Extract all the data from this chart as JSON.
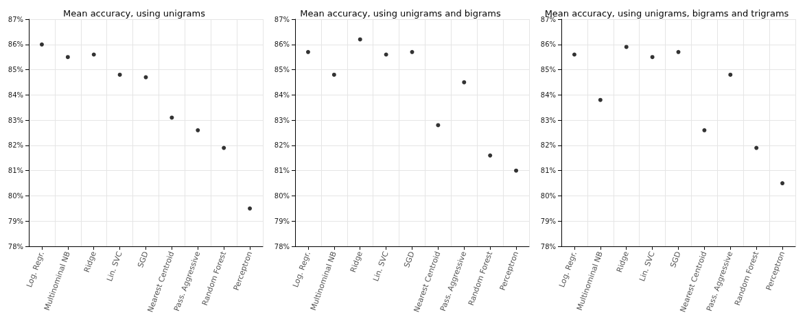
{
  "chart_data": [
    {
      "type": "scatter",
      "title": "Mean accuracy, using unigrams",
      "categories": [
        "Log. Regr.",
        "Multinominal NB",
        "Ridge",
        "Lin. SVC",
        "SGD",
        "Nearest Centroid",
        "Pass. Aggressive",
        "Random Forest",
        "Perceptron"
      ],
      "series": [
        {
          "color": "#000000",
          "values": [
            86.0,
            85.5,
            85.6,
            84.8,
            84.7,
            83.1,
            82.6,
            81.9,
            79.5
          ]
        }
      ],
      "ylim": [
        78,
        87
      ],
      "yticks": [
        {
          "value": 78,
          "label": "78%"
        },
        {
          "value": 79,
          "label": "79%"
        },
        {
          "value": 80,
          "label": "80%"
        },
        {
          "value": 81,
          "label": "81%"
        },
        {
          "value": 82,
          "label": "82%"
        },
        {
          "value": 83,
          "label": "83%"
        },
        {
          "value": 84,
          "label": "84%"
        },
        {
          "value": 85,
          "label": "85%"
        },
        {
          "value": 86,
          "label": "86%"
        },
        {
          "value": 87,
          "label": "87%"
        }
      ],
      "grid": true,
      "marker": "circle"
    },
    {
      "type": "scatter",
      "title": "Mean accuracy, using unigrams and bigrams",
      "categories": [
        "Log. Regr.",
        "Multinominal NB",
        "Ridge",
        "Lin. SVC",
        "SGD",
        "Nearest Centroid",
        "Pass. Aggressive",
        "Random Forest",
        "Perceptron"
      ],
      "series": [
        {
          "color": "#000000",
          "values": [
            85.7,
            84.8,
            86.2,
            85.6,
            85.7,
            82.8,
            84.5,
            81.6,
            81.0
          ]
        }
      ],
      "ylim": [
        78,
        87
      ],
      "yticks": [
        {
          "value": 78,
          "label": "78%"
        },
        {
          "value": 79,
          "label": "79%"
        },
        {
          "value": 80,
          "label": "80%"
        },
        {
          "value": 81,
          "label": "81%"
        },
        {
          "value": 82,
          "label": "82%"
        },
        {
          "value": 83,
          "label": "83%"
        },
        {
          "value": 84,
          "label": "84%"
        },
        {
          "value": 85,
          "label": "85%"
        },
        {
          "value": 86,
          "label": "86%"
        },
        {
          "value": 87,
          "label": "87%"
        }
      ],
      "grid": true,
      "marker": "circle"
    },
    {
      "type": "scatter",
      "title": "Mean accuracy, using unigrams, bigrams and trigrams",
      "categories": [
        "Log. Regr.",
        "Multinominal NB",
        "Ridge",
        "Lin. SVC",
        "SGD",
        "Nearest Centroid",
        "Pass. Aggressive",
        "Random Forest",
        "Perceptron"
      ],
      "series": [
        {
          "color": "#000000",
          "values": [
            85.6,
            83.8,
            85.9,
            85.5,
            85.7,
            82.6,
            84.8,
            81.9,
            80.5
          ]
        }
      ],
      "ylim": [
        78,
        87
      ],
      "yticks": [
        {
          "value": 78,
          "label": "78%"
        },
        {
          "value": 79,
          "label": "79%"
        },
        {
          "value": 80,
          "label": "80%"
        },
        {
          "value": 81,
          "label": "81%"
        },
        {
          "value": 82,
          "label": "82%"
        },
        {
          "value": 83,
          "label": "83%"
        },
        {
          "value": 84,
          "label": "84%"
        },
        {
          "value": 85,
          "label": "85%"
        },
        {
          "value": 86,
          "label": "86%"
        },
        {
          "value": 87,
          "label": "87%"
        }
      ],
      "grid": true,
      "marker": "circle"
    }
  ]
}
